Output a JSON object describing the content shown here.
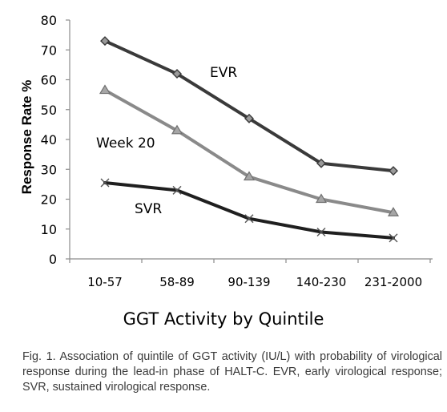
{
  "chart_data": {
    "type": "line",
    "title": "",
    "xlabel": "GGT Activity by Quintile",
    "ylabel": "Response Rate %",
    "categories": [
      "10-57",
      "58-89",
      "90-139",
      "140-230",
      "231-2000"
    ],
    "ylim": [
      0,
      80
    ],
    "yticks": [
      0,
      10,
      20,
      30,
      40,
      50,
      60,
      70,
      80
    ],
    "grid": false,
    "legend": "inline labels",
    "series": [
      {
        "name": "EVR",
        "values": [
          73,
          62,
          47,
          32,
          29.5
        ],
        "marker": "diamond",
        "color": "#3a3a3a"
      },
      {
        "name": "Week 20",
        "values": [
          56.5,
          43,
          27.5,
          20,
          15.5
        ],
        "marker": "triangle",
        "color": "#8a8a8a"
      },
      {
        "name": "SVR",
        "values": [
          25.5,
          23,
          13.5,
          9,
          7
        ],
        "marker": "x",
        "color": "#1f1f1f"
      }
    ]
  },
  "caption": "Fig. 1. Association of quintile of GGT activity (IU/L) with probability of virological response during the lead-in phase of HALT-C. EVR, early virological response; SVR, sustained virological response."
}
